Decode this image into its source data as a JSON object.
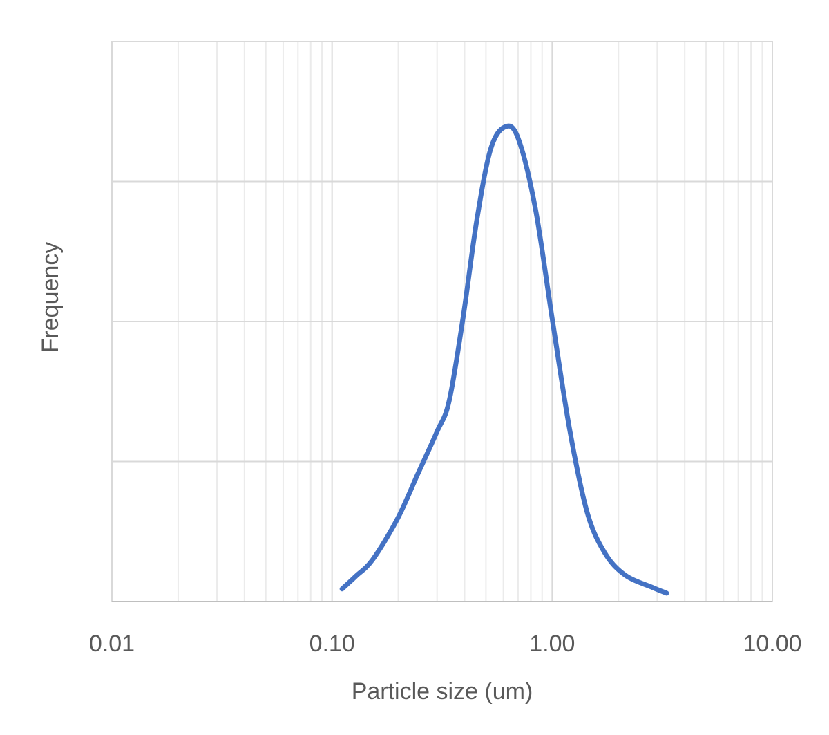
{
  "chart_data": {
    "type": "line",
    "xlabel": "Particle size (um)",
    "ylabel": "Frequency",
    "xscale": "log",
    "grid": true,
    "show_ytick_labels": false,
    "color": "#4472c4",
    "x": [
      0.111,
      0.128,
      0.153,
      0.198,
      0.245,
      0.299,
      0.34,
      0.393,
      0.454,
      0.525,
      0.61,
      0.7,
      0.838,
      1.0,
      1.2,
      1.44,
      1.73,
      2.14,
      2.86,
      3.31
    ],
    "values": [
      0.09,
      0.18,
      0.3,
      0.59,
      0.91,
      1.21,
      1.43,
      2.02,
      2.72,
      3.23,
      3.39,
      3.31,
      2.81,
      2.02,
      1.23,
      0.64,
      0.35,
      0.19,
      0.1,
      0.06
    ],
    "xlim": [
      0.01,
      10
    ],
    "xticks": [
      0.01,
      {
        "value": 0.1,
        "label": "0.10"
      },
      {
        "value": 1,
        "label": "1.00"
      },
      {
        "value": 10,
        "label": "10.00"
      }
    ],
    "ylim": [
      0,
      4
    ],
    "yticks": [
      0,
      1,
      2,
      3,
      4
    ]
  }
}
